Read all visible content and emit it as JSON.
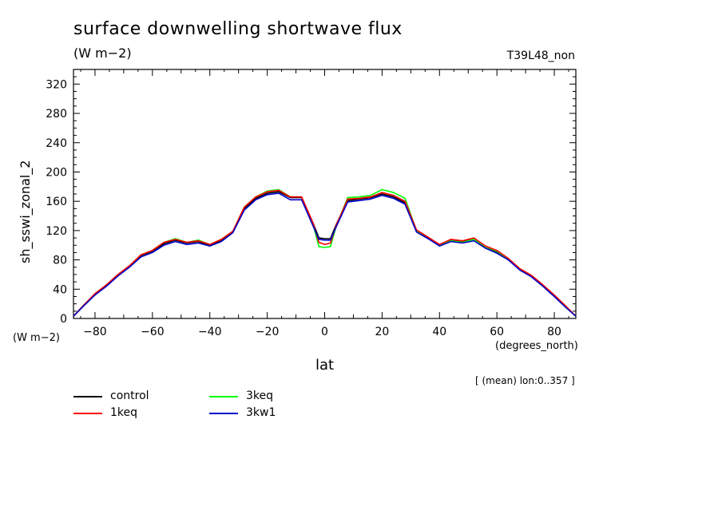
{
  "chart_data": {
    "type": "line",
    "title": "surface downwelling shortwave flux",
    "units": "(W m−2)",
    "experiment": "T39L48_non",
    "ylabel": "sh_sswi_zonal_2",
    "y_units": "(W m−2)",
    "xlabel": "lat",
    "x_units": "(degrees_north)",
    "note": "[ (mean) lon:0..357 ]",
    "xlim": [
      -87.5,
      87.5
    ],
    "ylim": [
      0,
      340
    ],
    "x_ticks": [
      -80,
      -60,
      -40,
      -20,
      0,
      20,
      40,
      60,
      80
    ],
    "x_tick_labels": [
      "−80",
      "−60",
      "−40",
      "−20",
      "0",
      "20",
      "40",
      "60",
      "80"
    ],
    "y_ticks": [
      0,
      40,
      80,
      120,
      160,
      200,
      240,
      280,
      320
    ],
    "y_tick_labels": [
      "0",
      "40",
      "80",
      "120",
      "160",
      "200",
      "240",
      "280",
      "320"
    ],
    "x": [
      -87.5,
      -84,
      -80,
      -76,
      -72,
      -68,
      -64,
      -60,
      -56,
      -52,
      -48,
      -44,
      -40,
      -36,
      -32,
      -28,
      -24,
      -20,
      -16,
      -12,
      -8,
      -4,
      -2,
      0,
      2,
      4,
      8,
      12,
      16,
      20,
      24,
      28,
      32,
      36,
      40,
      44,
      48,
      52,
      56,
      60,
      64,
      68,
      72,
      76,
      80,
      84,
      87.5
    ],
    "series": [
      {
        "name": "control",
        "color": "#000000",
        "values": [
          3,
          18,
          33,
          45,
          59,
          71,
          86,
          92,
          102,
          107,
          103,
          105,
          100,
          107,
          118,
          150,
          164,
          171,
          173,
          165,
          165,
          130,
          110,
          109,
          109,
          128,
          161,
          163,
          165,
          170,
          166,
          158,
          120,
          110,
          101,
          107,
          105,
          108,
          98,
          91,
          81,
          67,
          58,
          45,
          31,
          16,
          3
        ]
      },
      {
        "name": "1keq",
        "color": "#ff0000",
        "values": [
          3,
          18,
          34,
          46,
          60,
          72,
          87,
          93,
          104,
          108,
          104,
          106,
          101,
          108,
          119,
          152,
          166,
          173,
          175,
          166,
          166,
          130,
          104,
          101,
          103,
          127,
          163,
          164,
          166,
          172,
          168,
          160,
          121,
          111,
          101,
          108,
          106,
          110,
          99,
          93,
          82,
          68,
          59,
          46,
          32,
          17,
          3
        ]
      },
      {
        "name": "3keq",
        "color": "#00ff00",
        "values": [
          3,
          18,
          33,
          45,
          59,
          71,
          87,
          93,
          104,
          109,
          104,
          107,
          101,
          108,
          119,
          152,
          166,
          174,
          176,
          166,
          166,
          128,
          98,
          97,
          98,
          126,
          165,
          166,
          168,
          176,
          172,
          164,
          120,
          111,
          100,
          106,
          104,
          108,
          98,
          92,
          81,
          67,
          58,
          45,
          31,
          16,
          3
        ]
      },
      {
        "name": "3kw1",
        "color": "#0000cc",
        "values": [
          3,
          17,
          32,
          44,
          58,
          70,
          84,
          90,
          100,
          105,
          101,
          103,
          99,
          105,
          117,
          148,
          162,
          169,
          171,
          162,
          162,
          126,
          108,
          107,
          107,
          125,
          159,
          161,
          163,
          168,
          164,
          156,
          118,
          109,
          99,
          105,
          103,
          106,
          96,
          89,
          80,
          66,
          57,
          44,
          30,
          15,
          3
        ]
      }
    ]
  }
}
